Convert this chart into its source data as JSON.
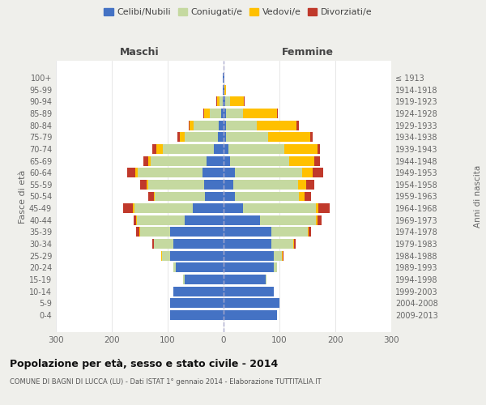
{
  "age_groups": [
    "0-4",
    "5-9",
    "10-14",
    "15-19",
    "20-24",
    "25-29",
    "30-34",
    "35-39",
    "40-44",
    "45-49",
    "50-54",
    "55-59",
    "60-64",
    "65-69",
    "70-74",
    "75-79",
    "80-84",
    "85-89",
    "90-94",
    "95-99",
    "100+"
  ],
  "birth_years": [
    "2009-2013",
    "2004-2008",
    "1999-2003",
    "1994-1998",
    "1989-1993",
    "1984-1988",
    "1979-1983",
    "1974-1978",
    "1969-1973",
    "1964-1968",
    "1959-1963",
    "1954-1958",
    "1949-1953",
    "1944-1948",
    "1939-1943",
    "1934-1938",
    "1929-1933",
    "1924-1928",
    "1919-1923",
    "1914-1918",
    "≤ 1913"
  ],
  "maschi": {
    "celibi": [
      95,
      95,
      90,
      70,
      85,
      95,
      90,
      95,
      70,
      55,
      33,
      35,
      38,
      30,
      18,
      10,
      8,
      5,
      2,
      1,
      1
    ],
    "coniugati": [
      0,
      0,
      0,
      2,
      5,
      15,
      35,
      55,
      85,
      105,
      90,
      100,
      115,
      100,
      90,
      60,
      45,
      20,
      5,
      1,
      0
    ],
    "vedovi": [
      0,
      0,
      0,
      0,
      0,
      1,
      0,
      1,
      1,
      2,
      2,
      2,
      5,
      5,
      12,
      8,
      8,
      10,
      5,
      0,
      0
    ],
    "divorziati": [
      0,
      0,
      0,
      0,
      0,
      1,
      2,
      5,
      5,
      18,
      10,
      12,
      15,
      8,
      8,
      5,
      2,
      1,
      1,
      0,
      0
    ]
  },
  "femmine": {
    "nubili": [
      95,
      100,
      90,
      75,
      90,
      90,
      85,
      85,
      65,
      35,
      20,
      18,
      20,
      12,
      8,
      5,
      5,
      5,
      3,
      1,
      1
    ],
    "coniugate": [
      0,
      0,
      0,
      2,
      5,
      15,
      40,
      65,
      100,
      130,
      115,
      115,
      120,
      105,
      100,
      75,
      55,
      30,
      8,
      0,
      0
    ],
    "vedove": [
      0,
      0,
      0,
      0,
      0,
      1,
      1,
      2,
      3,
      5,
      10,
      15,
      20,
      45,
      60,
      75,
      70,
      60,
      25,
      3,
      1
    ],
    "divorziate": [
      0,
      0,
      0,
      0,
      0,
      1,
      3,
      5,
      8,
      20,
      12,
      15,
      18,
      10,
      5,
      5,
      5,
      2,
      2,
      0,
      0
    ]
  },
  "colors": {
    "celibi": "#4472c4",
    "coniugati": "#c5d9a0",
    "vedovi": "#ffc000",
    "divorziati": "#c0392b"
  },
  "xlim": 300,
  "title": "Popolazione per età, sesso e stato civile - 2014",
  "subtitle": "COMUNE DI BAGNI DI LUCCA (LU) - Dati ISTAT 1° gennaio 2014 - Elaborazione TUTTITALIA.IT",
  "ylabel_left": "Fasce di età",
  "ylabel_right": "Anni di nascita",
  "xlabel_maschi": "Maschi",
  "xlabel_femmine": "Femmine",
  "bg_color": "#efefeb",
  "plot_bg_color": "#ffffff"
}
